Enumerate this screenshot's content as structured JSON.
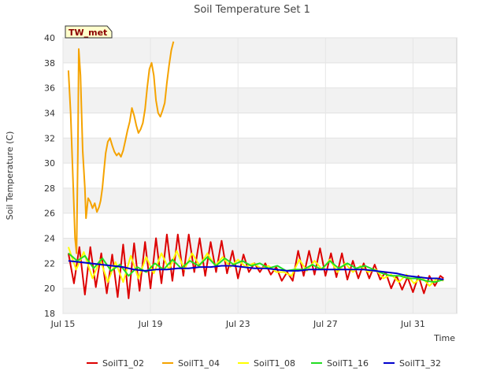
{
  "chart_data": {
    "type": "line",
    "title": "Soil Temperature Set 1",
    "xlabel": "Time",
    "ylabel": "Soil Temperature (C)",
    "badge": "TW_met",
    "xlim": [
      0,
      18
    ],
    "ylim": [
      18,
      40
    ],
    "x_ticks": [
      {
        "value": 0,
        "label": "Jul 15"
      },
      {
        "value": 4,
        "label": "Jul 19"
      },
      {
        "value": 8,
        "label": "Jul 23"
      },
      {
        "value": 12,
        "label": "Jul 27"
      },
      {
        "value": 16,
        "label": "Jul 31"
      }
    ],
    "y_ticks": [
      18,
      20,
      22,
      24,
      26,
      28,
      30,
      32,
      34,
      36,
      38,
      40
    ],
    "grid": true,
    "legend": "bottom",
    "series": [
      {
        "name": "SoilT1_02",
        "color": "#dd0000",
        "points": [
          [
            0.25,
            22.8
          ],
          [
            0.5,
            20.4
          ],
          [
            0.75,
            23.3
          ],
          [
            1.0,
            19.5
          ],
          [
            1.25,
            23.3
          ],
          [
            1.5,
            20.1
          ],
          [
            1.75,
            22.8
          ],
          [
            2.0,
            19.6
          ],
          [
            2.25,
            22.7
          ],
          [
            2.5,
            19.3
          ],
          [
            2.75,
            23.5
          ],
          [
            3.0,
            19.2
          ],
          [
            3.25,
            23.6
          ],
          [
            3.5,
            19.8
          ],
          [
            3.75,
            23.7
          ],
          [
            4.0,
            20.0
          ],
          [
            4.25,
            24.0
          ],
          [
            4.5,
            20.4
          ],
          [
            4.75,
            24.3
          ],
          [
            5.0,
            20.6
          ],
          [
            5.25,
            24.3
          ],
          [
            5.5,
            21.0
          ],
          [
            5.75,
            24.3
          ],
          [
            6.0,
            21.3
          ],
          [
            6.25,
            24.0
          ],
          [
            6.5,
            21.0
          ],
          [
            6.75,
            23.7
          ],
          [
            7.0,
            21.3
          ],
          [
            7.25,
            23.8
          ],
          [
            7.5,
            21.2
          ],
          [
            7.75,
            23.0
          ],
          [
            8.0,
            20.8
          ],
          [
            8.25,
            22.7
          ],
          [
            8.5,
            21.3
          ],
          [
            8.75,
            22.0
          ],
          [
            9.0,
            21.3
          ],
          [
            9.25,
            22.0
          ],
          [
            9.5,
            21.1
          ],
          [
            9.75,
            21.7
          ],
          [
            10.0,
            20.6
          ],
          [
            10.25,
            21.3
          ],
          [
            10.5,
            20.6
          ],
          [
            10.75,
            23.0
          ],
          [
            11.0,
            21.0
          ],
          [
            11.25,
            23.0
          ],
          [
            11.5,
            21.1
          ],
          [
            11.75,
            23.2
          ],
          [
            12.0,
            21.0
          ],
          [
            12.25,
            22.8
          ],
          [
            12.5,
            20.9
          ],
          [
            12.75,
            22.8
          ],
          [
            13.0,
            20.7
          ],
          [
            13.25,
            22.2
          ],
          [
            13.5,
            20.8
          ],
          [
            13.75,
            22.0
          ],
          [
            14.0,
            20.8
          ],
          [
            14.25,
            21.9
          ],
          [
            14.5,
            20.7
          ],
          [
            14.75,
            21.3
          ],
          [
            15.0,
            20.0
          ],
          [
            15.25,
            21.0
          ],
          [
            15.5,
            19.9
          ],
          [
            15.75,
            20.9
          ],
          [
            16.0,
            19.7
          ],
          [
            16.25,
            21.0
          ],
          [
            16.5,
            19.6
          ],
          [
            16.75,
            21.0
          ],
          [
            17.0,
            20.2
          ],
          [
            17.25,
            21.0
          ],
          [
            17.4,
            20.8
          ]
        ]
      },
      {
        "name": "SoilT1_04",
        "color": "#f5a300",
        "points": [
          [
            0.25,
            37.4
          ],
          [
            0.35,
            34.0
          ],
          [
            0.45,
            29.0
          ],
          [
            0.55,
            24.0
          ],
          [
            0.62,
            22.8
          ],
          [
            0.68,
            31.0
          ],
          [
            0.72,
            39.1
          ],
          [
            0.8,
            37.0
          ],
          [
            0.9,
            31.0
          ],
          [
            1.0,
            28.0
          ],
          [
            1.05,
            25.6
          ],
          [
            1.15,
            27.2
          ],
          [
            1.25,
            26.9
          ],
          [
            1.35,
            26.4
          ],
          [
            1.45,
            26.8
          ],
          [
            1.55,
            26.1
          ],
          [
            1.65,
            26.5
          ],
          [
            1.72,
            27.0
          ],
          [
            1.8,
            28.0
          ],
          [
            1.88,
            29.5
          ],
          [
            1.95,
            30.8
          ],
          [
            2.05,
            31.7
          ],
          [
            2.15,
            32.0
          ],
          [
            2.25,
            31.4
          ],
          [
            2.35,
            30.9
          ],
          [
            2.45,
            30.6
          ],
          [
            2.55,
            30.8
          ],
          [
            2.65,
            30.5
          ],
          [
            2.75,
            31.0
          ],
          [
            2.85,
            31.8
          ],
          [
            2.95,
            32.6
          ],
          [
            3.05,
            33.3
          ],
          [
            3.15,
            34.4
          ],
          [
            3.25,
            33.8
          ],
          [
            3.35,
            33.0
          ],
          [
            3.45,
            32.4
          ],
          [
            3.55,
            32.7
          ],
          [
            3.65,
            33.2
          ],
          [
            3.75,
            34.3
          ],
          [
            3.85,
            36.0
          ],
          [
            3.95,
            37.5
          ],
          [
            4.05,
            38.0
          ],
          [
            4.15,
            37.0
          ],
          [
            4.25,
            35.0
          ],
          [
            4.35,
            34.0
          ],
          [
            4.45,
            33.7
          ],
          [
            4.55,
            34.2
          ],
          [
            4.65,
            34.8
          ],
          [
            4.75,
            36.4
          ],
          [
            4.85,
            37.8
          ],
          [
            4.95,
            39.0
          ],
          [
            5.05,
            39.7
          ]
        ]
      },
      {
        "name": "SoilT1_08",
        "color": "#ffff00",
        "points": [
          [
            0.25,
            23.3
          ],
          [
            0.6,
            21.5
          ],
          [
            0.95,
            22.9
          ],
          [
            1.35,
            20.8
          ],
          [
            1.7,
            22.3
          ],
          [
            2.05,
            20.5
          ],
          [
            2.4,
            22.1
          ],
          [
            2.75,
            20.5
          ],
          [
            3.1,
            22.6
          ],
          [
            3.45,
            20.8
          ],
          [
            3.8,
            22.5
          ],
          [
            4.15,
            21.2
          ],
          [
            4.5,
            22.8
          ],
          [
            4.85,
            21.5
          ],
          [
            5.2,
            23.0
          ],
          [
            5.55,
            21.5
          ],
          [
            5.9,
            22.8
          ],
          [
            6.25,
            21.8
          ],
          [
            6.6,
            22.8
          ],
          [
            6.95,
            21.8
          ],
          [
            7.3,
            22.5
          ],
          [
            7.65,
            21.7
          ],
          [
            8.0,
            22.3
          ],
          [
            8.35,
            21.7
          ],
          [
            8.7,
            22.0
          ],
          [
            9.05,
            21.6
          ],
          [
            9.4,
            21.8
          ],
          [
            9.75,
            21.3
          ],
          [
            10.1,
            21.3
          ],
          [
            10.45,
            21.0
          ],
          [
            10.8,
            22.3
          ],
          [
            11.15,
            21.4
          ],
          [
            11.5,
            22.2
          ],
          [
            11.85,
            21.5
          ],
          [
            12.2,
            22.3
          ],
          [
            12.55,
            21.3
          ],
          [
            12.9,
            22.0
          ],
          [
            13.25,
            21.3
          ],
          [
            13.6,
            21.8
          ],
          [
            13.95,
            21.3
          ],
          [
            14.3,
            21.5
          ],
          [
            14.65,
            20.8
          ],
          [
            15.0,
            21.1
          ],
          [
            15.35,
            20.5
          ],
          [
            15.7,
            21.1
          ],
          [
            16.05,
            20.4
          ],
          [
            16.4,
            20.9
          ],
          [
            16.75,
            20.2
          ],
          [
            17.1,
            20.8
          ],
          [
            17.4,
            20.6
          ]
        ]
      },
      {
        "name": "SoilT1_16",
        "color": "#22dd22",
        "points": [
          [
            0.25,
            22.8
          ],
          [
            0.65,
            22.2
          ],
          [
            1.0,
            22.6
          ],
          [
            1.4,
            21.6
          ],
          [
            1.8,
            22.4
          ],
          [
            2.2,
            21.4
          ],
          [
            2.6,
            21.9
          ],
          [
            3.0,
            21.0
          ],
          [
            3.4,
            21.7
          ],
          [
            3.8,
            21.3
          ],
          [
            4.2,
            22.0
          ],
          [
            4.6,
            21.5
          ],
          [
            5.0,
            22.3
          ],
          [
            5.4,
            21.6
          ],
          [
            5.8,
            22.2
          ],
          [
            6.2,
            21.8
          ],
          [
            6.6,
            22.5
          ],
          [
            7.0,
            21.8
          ],
          [
            7.4,
            22.4
          ],
          [
            7.8,
            21.9
          ],
          [
            8.2,
            22.2
          ],
          [
            8.6,
            21.8
          ],
          [
            9.0,
            22.0
          ],
          [
            9.4,
            21.6
          ],
          [
            9.8,
            21.8
          ],
          [
            10.2,
            21.4
          ],
          [
            10.6,
            21.5
          ],
          [
            11.0,
            21.5
          ],
          [
            11.4,
            21.9
          ],
          [
            11.8,
            21.5
          ],
          [
            12.2,
            22.2
          ],
          [
            12.6,
            21.6
          ],
          [
            13.0,
            22.0
          ],
          [
            13.4,
            21.6
          ],
          [
            13.8,
            21.8
          ],
          [
            14.2,
            21.5
          ],
          [
            14.6,
            21.2
          ],
          [
            15.0,
            21.0
          ],
          [
            15.4,
            21.0
          ],
          [
            15.8,
            20.8
          ],
          [
            16.2,
            20.8
          ],
          [
            16.6,
            20.6
          ],
          [
            17.0,
            20.5
          ],
          [
            17.4,
            20.7
          ]
        ]
      },
      {
        "name": "SoilT1_32",
        "color": "#0000cc",
        "points": [
          [
            0.25,
            22.2
          ],
          [
            0.75,
            22.1
          ],
          [
            1.25,
            22.0
          ],
          [
            1.75,
            21.9
          ],
          [
            2.25,
            21.8
          ],
          [
            2.75,
            21.7
          ],
          [
            3.25,
            21.5
          ],
          [
            3.75,
            21.4
          ],
          [
            4.25,
            21.5
          ],
          [
            4.75,
            21.5
          ],
          [
            5.25,
            21.6
          ],
          [
            5.75,
            21.6
          ],
          [
            6.25,
            21.7
          ],
          [
            6.75,
            21.7
          ],
          [
            7.25,
            21.8
          ],
          [
            7.75,
            21.8
          ],
          [
            8.25,
            21.7
          ],
          [
            8.75,
            21.6
          ],
          [
            9.25,
            21.6
          ],
          [
            9.75,
            21.5
          ],
          [
            10.25,
            21.4
          ],
          [
            10.75,
            21.4
          ],
          [
            11.25,
            21.5
          ],
          [
            11.75,
            21.5
          ],
          [
            12.25,
            21.5
          ],
          [
            12.75,
            21.5
          ],
          [
            13.25,
            21.5
          ],
          [
            13.75,
            21.5
          ],
          [
            14.25,
            21.4
          ],
          [
            14.75,
            21.3
          ],
          [
            15.25,
            21.2
          ],
          [
            15.75,
            21.0
          ],
          [
            16.25,
            20.9
          ],
          [
            16.75,
            20.8
          ],
          [
            17.1,
            20.8
          ],
          [
            17.4,
            20.7
          ]
        ]
      }
    ]
  }
}
